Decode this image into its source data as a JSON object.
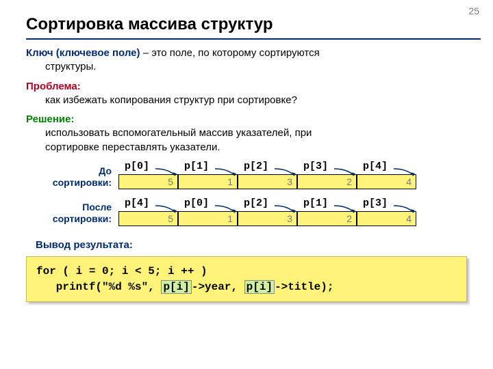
{
  "pageNumber": "25",
  "title": "Сортировка массива структур",
  "key": {
    "term": "Ключ (ключевое поле)",
    "rest": " – это поле, по которому сортируются",
    "line2": "структуры."
  },
  "problem": {
    "term": "Проблема:",
    "line": "как избежать копирования структур при сортировке?"
  },
  "solution": {
    "term": "Решение:",
    "line1": "использовать вспомогательный массив указателей, при",
    "line2": "сортировке переставлять указатели."
  },
  "diagram": {
    "beforeLabel1": "До",
    "beforeLabel2": "сортировки:",
    "afterLabel1": "После",
    "afterLabel2": "сортировки:",
    "values": [
      "5",
      "1",
      "3",
      "2",
      "4"
    ],
    "pBefore": [
      "p[0]",
      "p[1]",
      "p[2]",
      "p[3]",
      "p[4]"
    ],
    "pAfter": [
      "p[4]",
      "p[0]",
      "p[2]",
      "p[1]",
      "p[3]"
    ],
    "arrowColor": "#002b6e",
    "cellBg": "#fff37a"
  },
  "outputLabel": "Вывод результата:",
  "code": {
    "line1a": "for ( i = 0; i ",
    "line1b": "<",
    "line1c": " 5; i ++ )",
    "line2a": "   printf(\"%d %s\", ",
    "hl": "p[i]",
    "line2b": "->year, ",
    "line2c": "->title);"
  }
}
